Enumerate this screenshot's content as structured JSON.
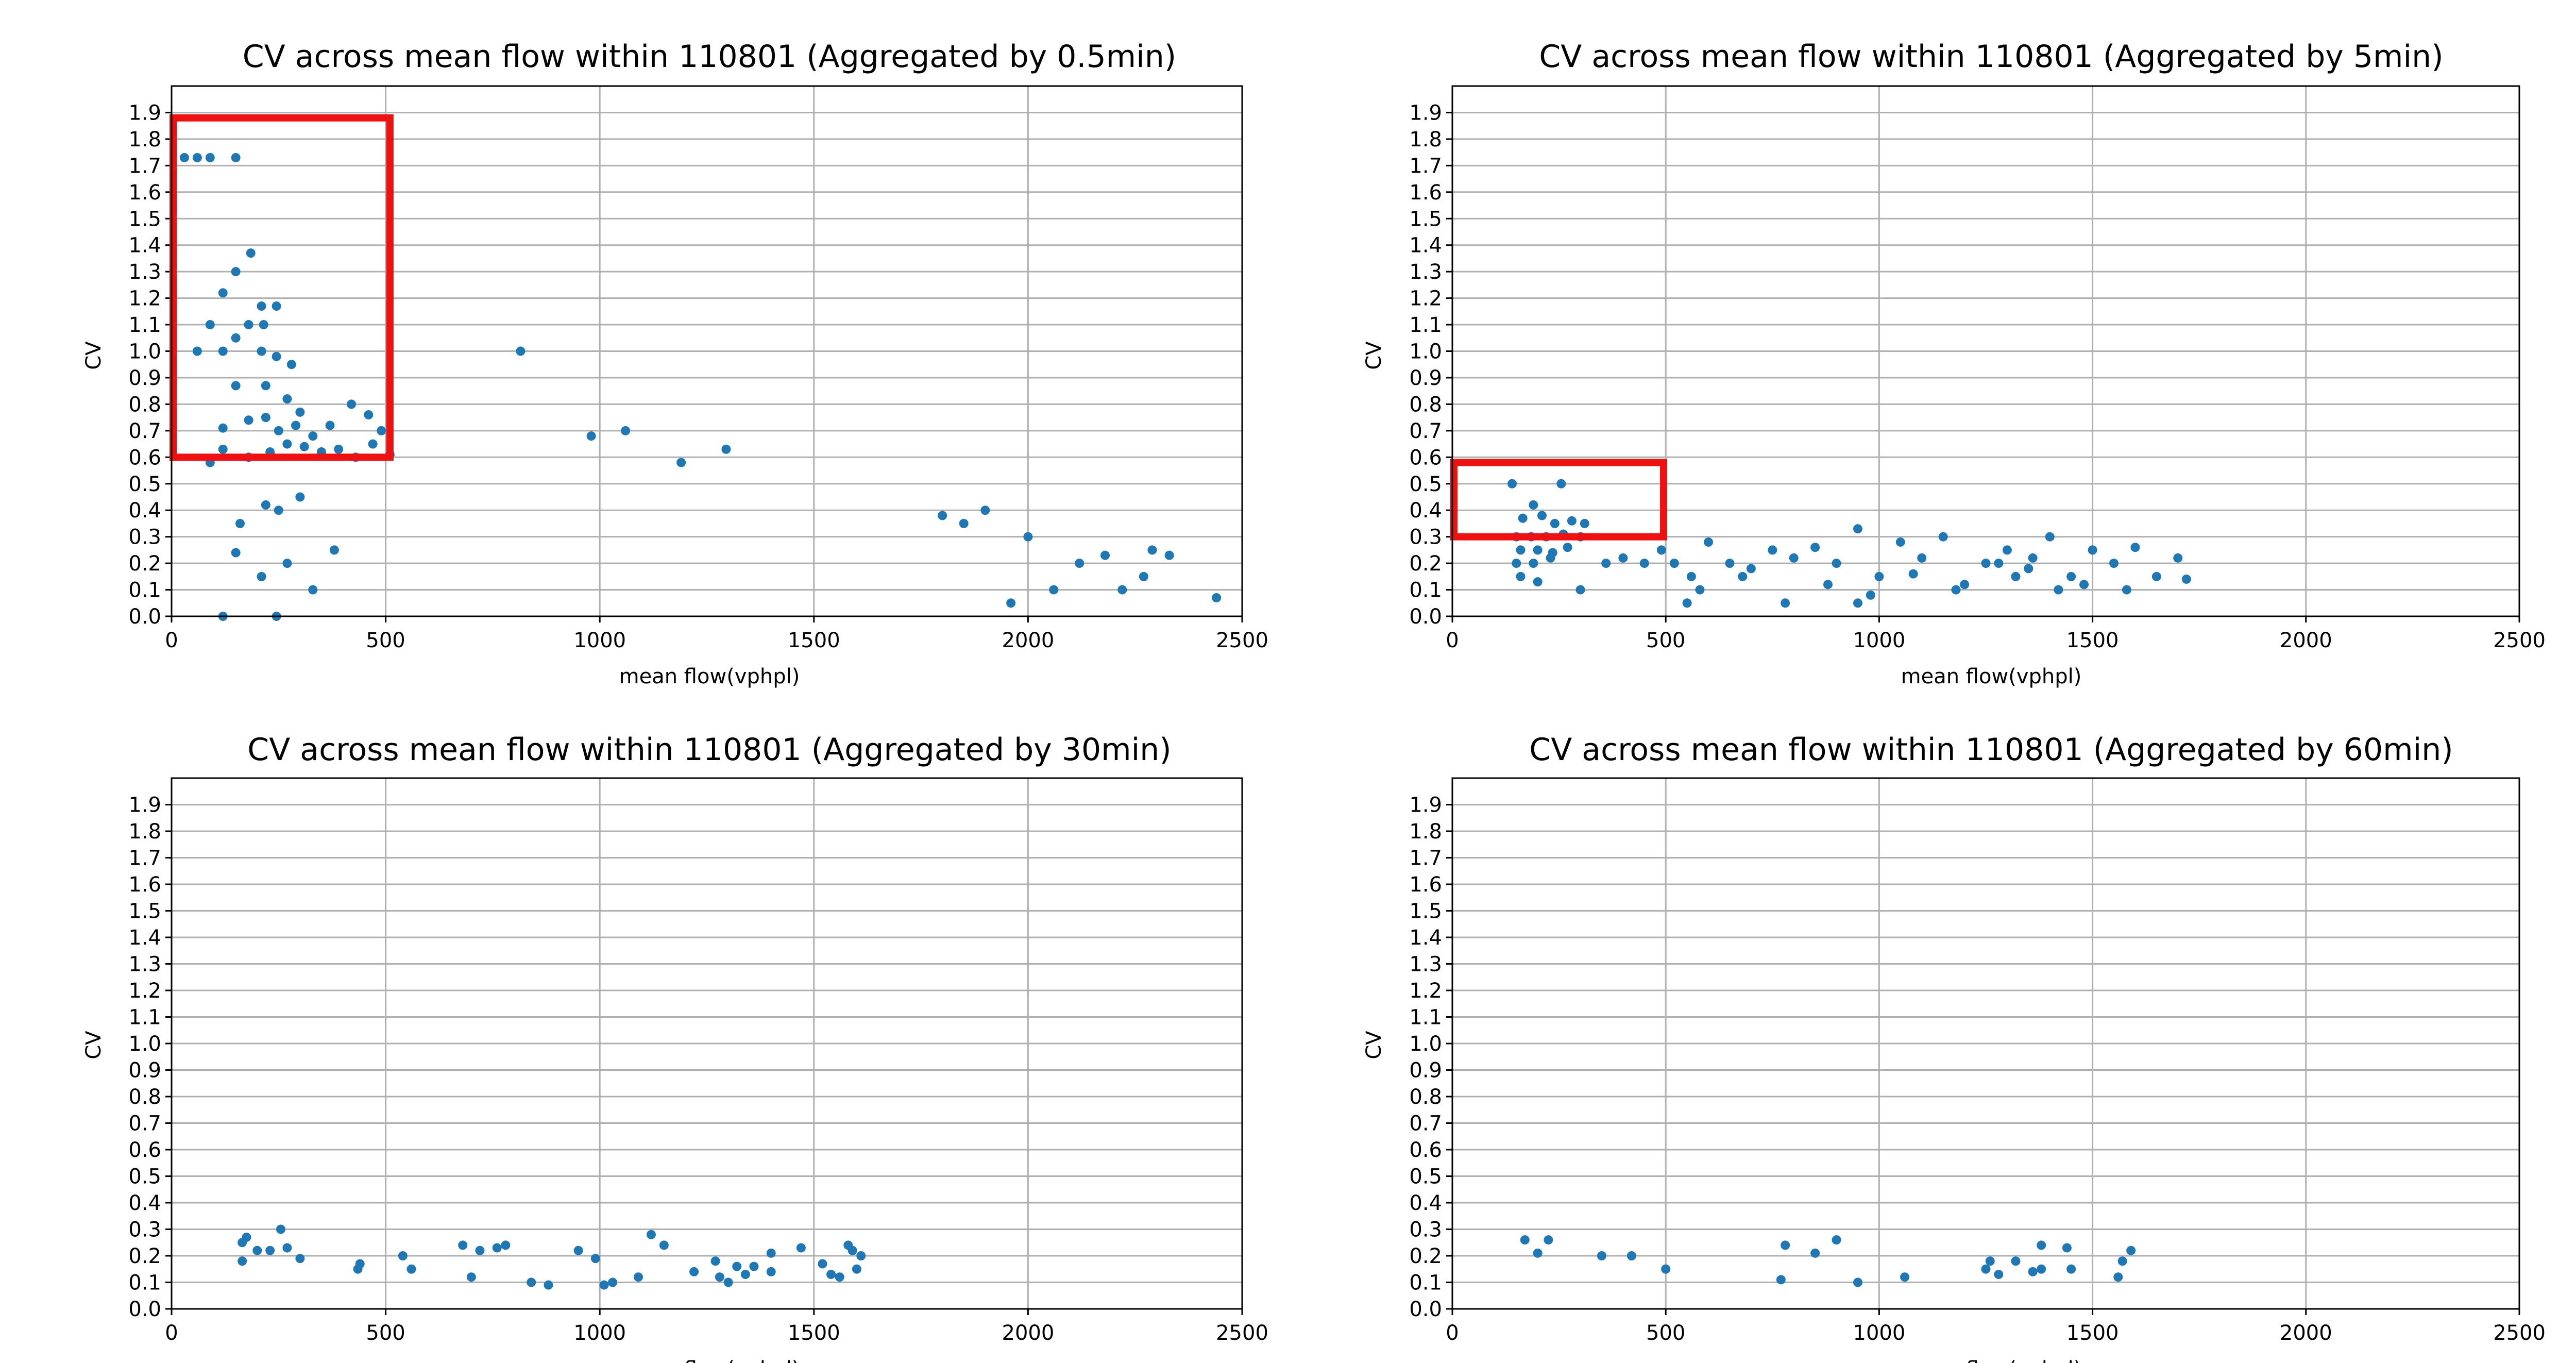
{
  "colors": {
    "points": "#1f77b4",
    "highlight": "#ee1111",
    "grid": "#b0b0b0"
  },
  "chart_data": [
    {
      "type": "scatter",
      "title": "CV across mean flow within 110801 (Aggregated by 0.5min)",
      "xlabel": "mean flow(vphpl)",
      "ylabel": "CV",
      "xlim": [
        0,
        2500
      ],
      "ylim": [
        0,
        2.0
      ],
      "xticks": [
        0,
        500,
        1000,
        1500,
        2000,
        2500
      ],
      "yticks": [
        0.0,
        0.1,
        0.2,
        0.3,
        0.4,
        0.5,
        0.6,
        0.7,
        0.8,
        0.9,
        1.0,
        1.1,
        1.2,
        1.3,
        1.4,
        1.5,
        1.6,
        1.7,
        1.8,
        1.9
      ],
      "grid": true,
      "highlight_box": {
        "x": [
          0,
          510
        ],
        "y": [
          0.6,
          1.88
        ]
      },
      "series": [
        {
          "points": [
            [
              30,
              1.73
            ],
            [
              60,
              1.73
            ],
            [
              90,
              1.73
            ],
            [
              150,
              1.73
            ],
            [
              185,
              1.37
            ],
            [
              150,
              1.3
            ],
            [
              120,
              1.22
            ],
            [
              210,
              1.17
            ],
            [
              245,
              1.17
            ],
            [
              90,
              1.1
            ],
            [
              180,
              1.1
            ],
            [
              215,
              1.1
            ],
            [
              60,
              1.0
            ],
            [
              120,
              1.0
            ],
            [
              150,
              1.05
            ],
            [
              210,
              1.0
            ],
            [
              245,
              0.98
            ],
            [
              280,
              0.95
            ],
            [
              150,
              0.87
            ],
            [
              220,
              0.87
            ],
            [
              270,
              0.82
            ],
            [
              300,
              0.77
            ],
            [
              120,
              0.71
            ],
            [
              180,
              0.74
            ],
            [
              220,
              0.75
            ],
            [
              250,
              0.7
            ],
            [
              290,
              0.72
            ],
            [
              330,
              0.68
            ],
            [
              370,
              0.72
            ],
            [
              420,
              0.8
            ],
            [
              460,
              0.76
            ],
            [
              490,
              0.7
            ],
            [
              90,
              0.58
            ],
            [
              120,
              0.63
            ],
            [
              180,
              0.6
            ],
            [
              230,
              0.62
            ],
            [
              270,
              0.65
            ],
            [
              310,
              0.64
            ],
            [
              350,
              0.62
            ],
            [
              390,
              0.63
            ],
            [
              430,
              0.6
            ],
            [
              470,
              0.65
            ],
            [
              510,
              0.61
            ],
            [
              815,
              1.0
            ],
            [
              980,
              0.68
            ],
            [
              1060,
              0.7
            ],
            [
              1295,
              0.63
            ],
            [
              1190,
              0.58
            ],
            [
              160,
              0.35
            ],
            [
              220,
              0.42
            ],
            [
              250,
              0.4
            ],
            [
              300,
              0.45
            ],
            [
              150,
              0.24
            ],
            [
              210,
              0.15
            ],
            [
              270,
              0.2
            ],
            [
              330,
              0.1
            ],
            [
              380,
              0.25
            ],
            [
              120,
              0.0
            ],
            [
              245,
              0.0
            ],
            [
              2440,
              0.07
            ],
            [
              2330,
              0.23
            ],
            [
              2270,
              0.15
            ],
            [
              2220,
              0.1
            ],
            [
              2120,
              0.2
            ],
            [
              2060,
              0.1
            ],
            [
              2000,
              0.3
            ],
            [
              1960,
              0.05
            ],
            [
              2180,
              0.23
            ],
            [
              2290,
              0.25
            ],
            [
              1900,
              0.4
            ],
            [
              1850,
              0.35
            ],
            [
              1800,
              0.38
            ]
          ]
        }
      ]
    },
    {
      "type": "scatter",
      "title": "CV across mean flow within 110801 (Aggregated by 5min)",
      "xlabel": "mean flow(vphpl)",
      "ylabel": "CV",
      "xlim": [
        0,
        2500
      ],
      "ylim": [
        0,
        2.0
      ],
      "xticks": [
        0,
        500,
        1000,
        1500,
        2000,
        2500
      ],
      "yticks": [
        0.0,
        0.1,
        0.2,
        0.3,
        0.4,
        0.5,
        0.6,
        0.7,
        0.8,
        0.9,
        1.0,
        1.1,
        1.2,
        1.3,
        1.4,
        1.5,
        1.6,
        1.7,
        1.8,
        1.9
      ],
      "grid": true,
      "highlight_box": {
        "x": [
          0,
          495
        ],
        "y": [
          0.3,
          0.58
        ]
      },
      "series": [
        {
          "points": [
            [
              140,
              0.5
            ],
            [
              255,
              0.5
            ],
            [
              190,
              0.42
            ],
            [
              165,
              0.37
            ],
            [
              210,
              0.38
            ],
            [
              240,
              0.35
            ],
            [
              280,
              0.36
            ],
            [
              310,
              0.35
            ],
            [
              150,
              0.3
            ],
            [
              185,
              0.3
            ],
            [
              220,
              0.3
            ],
            [
              260,
              0.31
            ],
            [
              300,
              0.3
            ],
            [
              160,
              0.25
            ],
            [
              200,
              0.25
            ],
            [
              235,
              0.24
            ],
            [
              270,
              0.26
            ],
            [
              150,
              0.2
            ],
            [
              190,
              0.2
            ],
            [
              230,
              0.22
            ],
            [
              160,
              0.15
            ],
            [
              200,
              0.13
            ],
            [
              300,
              0.1
            ],
            [
              360,
              0.2
            ],
            [
              400,
              0.22
            ],
            [
              450,
              0.2
            ],
            [
              490,
              0.25
            ],
            [
              520,
              0.2
            ],
            [
              560,
              0.15
            ],
            [
              600,
              0.28
            ],
            [
              650,
              0.2
            ],
            [
              700,
              0.18
            ],
            [
              750,
              0.25
            ],
            [
              800,
              0.22
            ],
            [
              850,
              0.26
            ],
            [
              900,
              0.2
            ],
            [
              950,
              0.33
            ],
            [
              1000,
              0.15
            ],
            [
              1050,
              0.28
            ],
            [
              1100,
              0.22
            ],
            [
              1150,
              0.3
            ],
            [
              1200,
              0.12
            ],
            [
              1250,
              0.2
            ],
            [
              1300,
              0.25
            ],
            [
              1350,
              0.18
            ],
            [
              1400,
              0.3
            ],
            [
              1450,
              0.15
            ],
            [
              1500,
              0.25
            ],
            [
              1550,
              0.2
            ],
            [
              1600,
              0.26
            ],
            [
              1650,
              0.15
            ],
            [
              1700,
              0.22
            ],
            [
              1720,
              0.14
            ],
            [
              1280,
              0.2
            ],
            [
              1320,
              0.15
            ],
            [
              1360,
              0.22
            ],
            [
              1420,
              0.1
            ],
            [
              580,
              0.1
            ],
            [
              680,
              0.15
            ],
            [
              780,
              0.05
            ],
            [
              880,
              0.12
            ],
            [
              980,
              0.08
            ],
            [
              1080,
              0.16
            ],
            [
              1180,
              0.1
            ],
            [
              1480,
              0.12
            ],
            [
              1580,
              0.1
            ],
            [
              550,
              0.05
            ],
            [
              950,
              0.05
            ]
          ]
        }
      ]
    },
    {
      "type": "scatter",
      "title": "CV across mean flow within 110801 (Aggregated by 30min)",
      "xlabel": "mean flow(vphpl)",
      "ylabel": "CV",
      "xlim": [
        0,
        2500
      ],
      "ylim": [
        0,
        2.0
      ],
      "xticks": [
        0,
        500,
        1000,
        1500,
        2000,
        2500
      ],
      "yticks": [
        0.0,
        0.1,
        0.2,
        0.3,
        0.4,
        0.5,
        0.6,
        0.7,
        0.8,
        0.9,
        1.0,
        1.1,
        1.2,
        1.3,
        1.4,
        1.5,
        1.6,
        1.7,
        1.8,
        1.9
      ],
      "grid": true,
      "series": [
        {
          "points": [
            [
              165,
              0.25
            ],
            [
              175,
              0.27
            ],
            [
              165,
              0.18
            ],
            [
              200,
              0.22
            ],
            [
              230,
              0.22
            ],
            [
              255,
              0.3
            ],
            [
              270,
              0.23
            ],
            [
              300,
              0.19
            ],
            [
              435,
              0.15
            ],
            [
              440,
              0.17
            ],
            [
              540,
              0.2
            ],
            [
              560,
              0.15
            ],
            [
              680,
              0.24
            ],
            [
              700,
              0.12
            ],
            [
              720,
              0.22
            ],
            [
              760,
              0.23
            ],
            [
              780,
              0.24
            ],
            [
              840,
              0.1
            ],
            [
              880,
              0.09
            ],
            [
              950,
              0.22
            ],
            [
              990,
              0.19
            ],
            [
              1010,
              0.09
            ],
            [
              1030,
              0.1
            ],
            [
              1090,
              0.12
            ],
            [
              1120,
              0.28
            ],
            [
              1150,
              0.24
            ],
            [
              1220,
              0.14
            ],
            [
              1270,
              0.18
            ],
            [
              1280,
              0.12
            ],
            [
              1300,
              0.1
            ],
            [
              1320,
              0.16
            ],
            [
              1340,
              0.13
            ],
            [
              1360,
              0.16
            ],
            [
              1400,
              0.21
            ],
            [
              1400,
              0.14
            ],
            [
              1470,
              0.23
            ],
            [
              1520,
              0.17
            ],
            [
              1540,
              0.13
            ],
            [
              1560,
              0.12
            ],
            [
              1580,
              0.24
            ],
            [
              1590,
              0.22
            ],
            [
              1600,
              0.15
            ],
            [
              1610,
              0.2
            ]
          ]
        }
      ]
    },
    {
      "type": "scatter",
      "title": "CV across mean flow within 110801 (Aggregated by 60min)",
      "xlabel": "mean flow(vphpl)",
      "ylabel": "CV",
      "xlim": [
        0,
        2500
      ],
      "ylim": [
        0,
        2.0
      ],
      "xticks": [
        0,
        500,
        1000,
        1500,
        2000,
        2500
      ],
      "yticks": [
        0.0,
        0.1,
        0.2,
        0.3,
        0.4,
        0.5,
        0.6,
        0.7,
        0.8,
        0.9,
        1.0,
        1.1,
        1.2,
        1.3,
        1.4,
        1.5,
        1.6,
        1.7,
        1.8,
        1.9
      ],
      "grid": true,
      "series": [
        {
          "points": [
            [
              170,
              0.26
            ],
            [
              200,
              0.21
            ],
            [
              225,
              0.26
            ],
            [
              350,
              0.2
            ],
            [
              420,
              0.2
            ],
            [
              500,
              0.15
            ],
            [
              770,
              0.11
            ],
            [
              780,
              0.24
            ],
            [
              850,
              0.21
            ],
            [
              900,
              0.26
            ],
            [
              950,
              0.1
            ],
            [
              1060,
              0.12
            ],
            [
              1250,
              0.15
            ],
            [
              1260,
              0.18
            ],
            [
              1280,
              0.13
            ],
            [
              1320,
              0.18
            ],
            [
              1360,
              0.14
            ],
            [
              1380,
              0.15
            ],
            [
              1380,
              0.24
            ],
            [
              1440,
              0.23
            ],
            [
              1450,
              0.15
            ],
            [
              1560,
              0.12
            ],
            [
              1570,
              0.18
            ],
            [
              1590,
              0.22
            ]
          ]
        }
      ]
    }
  ]
}
